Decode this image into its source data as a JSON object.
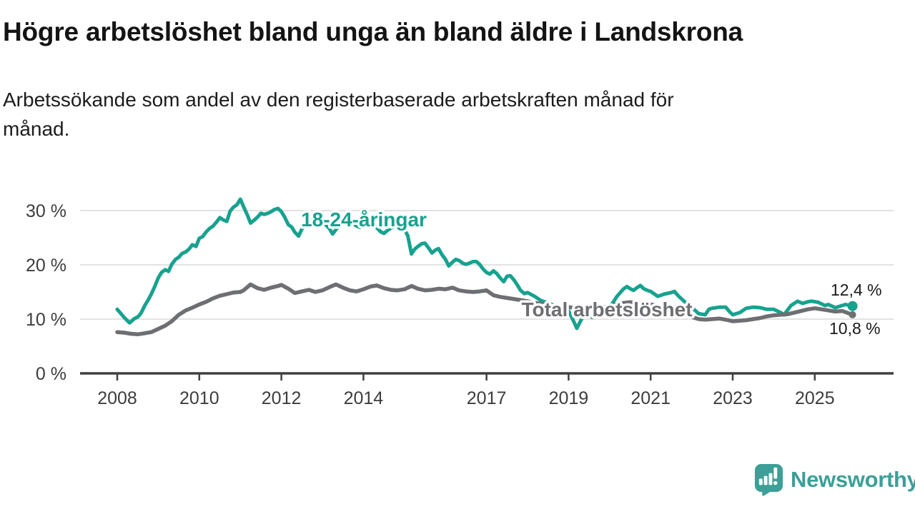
{
  "header": {
    "title": "Högre arbetslöshet bland unga än bland äldre i Landskrona",
    "subtitle": "Arbetssökande som andel av den registerbaserade arbetskraften månad för månad.",
    "subtitle_line1": "Arbetssökande som andel av den registerbaserade arbetskraften månad för",
    "subtitle_line2": "månad."
  },
  "footer": {
    "brand": "Newsworthy"
  },
  "colors": {
    "youth_line": "#17a28f",
    "total_line": "#6e6f72",
    "grid": "#d9d9d9",
    "axis": "#3f4040",
    "tick_text": "#3d3d3d",
    "end_label_text": "#1a1a1a",
    "brand_teal": "#3d9f97"
  },
  "chart_data": {
    "type": "line",
    "title": "Högre arbetslöshet bland unga än bland äldre i Landskrona",
    "subtitle": "Arbetssökande som andel av den registerbaserade arbetskraften månad för månad.",
    "unit": "%",
    "xlim": [
      2007.1,
      2026.9
    ],
    "ylim": [
      0,
      33
    ],
    "grid": "horizontal",
    "legend": "inline-labels",
    "x_ticks": [
      {
        "value": 2008,
        "label": "2008"
      },
      {
        "value": 2010,
        "label": "2010"
      },
      {
        "value": 2012,
        "label": "2012"
      },
      {
        "value": 2014,
        "label": "2014"
      },
      {
        "value": 2017,
        "label": "2017"
      },
      {
        "value": 2019,
        "label": "2019"
      },
      {
        "value": 2021,
        "label": "2021"
      },
      {
        "value": 2023,
        "label": "2023"
      },
      {
        "value": 2025,
        "label": "2025"
      }
    ],
    "y_ticks": [
      {
        "value": 0,
        "label": "0 %"
      },
      {
        "value": 10,
        "label": "10 %"
      },
      {
        "value": 20,
        "label": "20 %"
      },
      {
        "value": 30,
        "label": "30 %"
      }
    ],
    "series": [
      {
        "key": "youth",
        "name": "18-24-åringar",
        "label_text": "18-24-åringar",
        "color": "#17a28f",
        "end_value": 12.4,
        "end_label": "12,4 %",
        "points": [
          [
            2008,
            11.8
          ],
          [
            2008.08,
            11.1
          ],
          [
            2008.17,
            10.3
          ],
          [
            2008.3,
            9.3
          ],
          [
            2008.42,
            10.1
          ],
          [
            2008.5,
            10.4
          ],
          [
            2008.58,
            11.1
          ],
          [
            2008.67,
            12.5
          ],
          [
            2008.75,
            13.5
          ],
          [
            2008.83,
            14.6
          ],
          [
            2008.92,
            16.1
          ],
          [
            2009,
            17.6
          ],
          [
            2009.08,
            18.6
          ],
          [
            2009.17,
            19.1
          ],
          [
            2009.25,
            18.8
          ],
          [
            2009.33,
            20.1
          ],
          [
            2009.42,
            21
          ],
          [
            2009.5,
            21.4
          ],
          [
            2009.58,
            22.1
          ],
          [
            2009.67,
            22.4
          ],
          [
            2009.75,
            22.9
          ],
          [
            2009.83,
            23.7
          ],
          [
            2009.92,
            23.4
          ],
          [
            2010,
            24.9
          ],
          [
            2010.08,
            25.2
          ],
          [
            2010.17,
            26.1
          ],
          [
            2010.25,
            26.7
          ],
          [
            2010.33,
            27.1
          ],
          [
            2010.42,
            27.9
          ],
          [
            2010.5,
            28.7
          ],
          [
            2010.58,
            28.3
          ],
          [
            2010.67,
            28
          ],
          [
            2010.75,
            29.9
          ],
          [
            2010.83,
            30.6
          ],
          [
            2010.92,
            31.1
          ],
          [
            2011,
            32.1
          ],
          [
            2011.08,
            30.7
          ],
          [
            2011.17,
            29.2
          ],
          [
            2011.25,
            27.7
          ],
          [
            2011.33,
            28.2
          ],
          [
            2011.42,
            28.8
          ],
          [
            2011.5,
            29.5
          ],
          [
            2011.58,
            29.3
          ],
          [
            2011.67,
            29.5
          ],
          [
            2011.75,
            29.8
          ],
          [
            2011.83,
            30.2
          ],
          [
            2011.92,
            30.4
          ],
          [
            2012,
            29.8
          ],
          [
            2012.08,
            28.8
          ],
          [
            2012.17,
            27.4
          ],
          [
            2012.25,
            27
          ],
          [
            2012.33,
            26
          ],
          [
            2012.42,
            25.3
          ],
          [
            2012.5,
            26.6
          ],
          [
            2012.58,
            27.4
          ],
          [
            2012.67,
            27.9
          ],
          [
            2012.75,
            28.3
          ],
          [
            2012.83,
            28.6
          ],
          [
            2012.92,
            28.3
          ],
          [
            2013,
            27.9
          ],
          [
            2013.08,
            27.4
          ],
          [
            2013.17,
            26.7
          ],
          [
            2013.25,
            25.7
          ],
          [
            2013.33,
            26.5
          ],
          [
            2013.42,
            27.3
          ],
          [
            2013.5,
            27.9
          ],
          [
            2013.58,
            28.4
          ],
          [
            2013.67,
            28
          ],
          [
            2013.75,
            27.6
          ],
          [
            2013.83,
            27.2
          ],
          [
            2013.92,
            26.9
          ],
          [
            2014,
            27.3
          ],
          [
            2014.08,
            27.7
          ],
          [
            2014.17,
            28
          ],
          [
            2014.25,
            27.4
          ],
          [
            2014.33,
            26.8
          ],
          [
            2014.42,
            26.1
          ],
          [
            2014.5,
            25.8
          ],
          [
            2014.58,
            26.3
          ],
          [
            2014.67,
            26.8
          ],
          [
            2014.75,
            27
          ],
          [
            2014.83,
            26.6
          ],
          [
            2014.92,
            26.2
          ],
          [
            2015,
            26.5
          ],
          [
            2015.08,
            25.4
          ],
          [
            2015.17,
            22
          ],
          [
            2015.25,
            22.9
          ],
          [
            2015.33,
            23.4
          ],
          [
            2015.42,
            23.9
          ],
          [
            2015.5,
            24
          ],
          [
            2015.58,
            23.2
          ],
          [
            2015.67,
            22.2
          ],
          [
            2015.75,
            22.7
          ],
          [
            2015.83,
            23
          ],
          [
            2015.92,
            21.8
          ],
          [
            2016,
            21
          ],
          [
            2016.08,
            19.8
          ],
          [
            2016.17,
            20.5
          ],
          [
            2016.25,
            21
          ],
          [
            2016.33,
            20.8
          ],
          [
            2016.42,
            20.3
          ],
          [
            2016.5,
            20.1
          ],
          [
            2016.58,
            20.3
          ],
          [
            2016.67,
            20.6
          ],
          [
            2016.75,
            20.6
          ],
          [
            2016.83,
            20.1
          ],
          [
            2016.92,
            19.2
          ],
          [
            2017,
            18.6
          ],
          [
            2017.08,
            18.3
          ],
          [
            2017.17,
            18.9
          ],
          [
            2017.25,
            18.4
          ],
          [
            2017.33,
            17.6
          ],
          [
            2017.42,
            16.9
          ],
          [
            2017.5,
            17.9
          ],
          [
            2017.58,
            18
          ],
          [
            2017.67,
            17.2
          ],
          [
            2017.75,
            16.3
          ],
          [
            2017.83,
            15.3
          ],
          [
            2017.92,
            14.7
          ],
          [
            2018,
            14.9
          ],
          [
            2018.17,
            14.2
          ],
          [
            2018.33,
            13.4
          ],
          [
            2018.5,
            13
          ],
          [
            2018.67,
            12.4
          ],
          [
            2018.83,
            12
          ],
          [
            2019,
            11.5
          ],
          [
            2019.08,
            10.3
          ],
          [
            2019.2,
            8.3
          ],
          [
            2019.33,
            10.2
          ],
          [
            2019.42,
            10.9
          ],
          [
            2019.5,
            10.6
          ],
          [
            2019.58,
            10.3
          ],
          [
            2019.67,
            10.6
          ],
          [
            2019.83,
            11.2
          ],
          [
            2020,
            12.1
          ],
          [
            2020.17,
            14.1
          ],
          [
            2020.33,
            15.5
          ],
          [
            2020.42,
            16
          ],
          [
            2020.5,
            15.6
          ],
          [
            2020.58,
            15.3
          ],
          [
            2020.67,
            15.8
          ],
          [
            2020.75,
            16.2
          ],
          [
            2020.83,
            15.6
          ],
          [
            2020.92,
            15.3
          ],
          [
            2021,
            15.1
          ],
          [
            2021.17,
            14.2
          ],
          [
            2021.33,
            14.6
          ],
          [
            2021.5,
            14.9
          ],
          [
            2021.58,
            15.1
          ],
          [
            2021.67,
            14.3
          ],
          [
            2021.83,
            13.2
          ],
          [
            2022,
            12.2
          ],
          [
            2022.17,
            11
          ],
          [
            2022.33,
            10.8
          ],
          [
            2022.42,
            11.8
          ],
          [
            2022.5,
            12
          ],
          [
            2022.67,
            12.2
          ],
          [
            2022.83,
            12.2
          ],
          [
            2022.92,
            11.4
          ],
          [
            2023,
            10.8
          ],
          [
            2023.17,
            11.2
          ],
          [
            2023.33,
            12
          ],
          [
            2023.5,
            12.2
          ],
          [
            2023.67,
            12.1
          ],
          [
            2023.83,
            11.8
          ],
          [
            2024,
            11.8
          ],
          [
            2024.17,
            11.2
          ],
          [
            2024.25,
            10.8
          ],
          [
            2024.42,
            12.5
          ],
          [
            2024.58,
            13.3
          ],
          [
            2024.7,
            12.9
          ],
          [
            2024.83,
            13.2
          ],
          [
            2024.92,
            13.3
          ],
          [
            2025.08,
            13.1
          ],
          [
            2025.25,
            12.5
          ],
          [
            2025.33,
            12.7
          ],
          [
            2025.5,
            12.1
          ],
          [
            2025.58,
            12.3
          ],
          [
            2025.75,
            12.7
          ],
          [
            2025.92,
            12.4
          ]
        ]
      },
      {
        "key": "total",
        "name": "Total arbetslöshet",
        "label_text": "Total arbetslöshet",
        "color": "#6e6f72",
        "end_value": 10.8,
        "end_label": "10,8 %",
        "points": [
          [
            2008,
            7.6
          ],
          [
            2008.17,
            7.5
          ],
          [
            2008.33,
            7.3
          ],
          [
            2008.5,
            7.2
          ],
          [
            2008.67,
            7.4
          ],
          [
            2008.83,
            7.6
          ],
          [
            2009,
            8.2
          ],
          [
            2009.17,
            8.8
          ],
          [
            2009.33,
            9.6
          ],
          [
            2009.5,
            10.8
          ],
          [
            2009.67,
            11.6
          ],
          [
            2009.83,
            12.1
          ],
          [
            2010,
            12.7
          ],
          [
            2010.17,
            13.2
          ],
          [
            2010.33,
            13.8
          ],
          [
            2010.5,
            14.3
          ],
          [
            2010.67,
            14.6
          ],
          [
            2010.83,
            14.9
          ],
          [
            2011,
            15
          ],
          [
            2011.08,
            15.3
          ],
          [
            2011.25,
            16.4
          ],
          [
            2011.42,
            15.7
          ],
          [
            2011.58,
            15.4
          ],
          [
            2011.75,
            15.8
          ],
          [
            2011.92,
            16.1
          ],
          [
            2012,
            16.3
          ],
          [
            2012.17,
            15.6
          ],
          [
            2012.33,
            14.8
          ],
          [
            2012.5,
            15.1
          ],
          [
            2012.67,
            15.4
          ],
          [
            2012.83,
            15
          ],
          [
            2013,
            15.3
          ],
          [
            2013.17,
            15.9
          ],
          [
            2013.33,
            16.4
          ],
          [
            2013.5,
            15.8
          ],
          [
            2013.67,
            15.3
          ],
          [
            2013.83,
            15.1
          ],
          [
            2014,
            15.5
          ],
          [
            2014.17,
            16
          ],
          [
            2014.33,
            16.2
          ],
          [
            2014.5,
            15.7
          ],
          [
            2014.67,
            15.4
          ],
          [
            2014.83,
            15.3
          ],
          [
            2015,
            15.5
          ],
          [
            2015.17,
            16.1
          ],
          [
            2015.33,
            15.6
          ],
          [
            2015.5,
            15.3
          ],
          [
            2015.67,
            15.4
          ],
          [
            2015.83,
            15.6
          ],
          [
            2016,
            15.5
          ],
          [
            2016.17,
            15.8
          ],
          [
            2016.33,
            15.3
          ],
          [
            2016.5,
            15.1
          ],
          [
            2016.67,
            15
          ],
          [
            2016.83,
            15.1
          ],
          [
            2017,
            15.3
          ],
          [
            2017.17,
            14.4
          ],
          [
            2017.33,
            14.1
          ],
          [
            2017.5,
            13.9
          ],
          [
            2017.75,
            13.6
          ],
          [
            2018,
            13.3
          ],
          [
            2018.25,
            12.9
          ],
          [
            2018.5,
            12.6
          ],
          [
            2018.75,
            12.4
          ],
          [
            2019,
            12.2
          ],
          [
            2019.25,
            12
          ],
          [
            2019.5,
            11.9
          ],
          [
            2019.75,
            12.1
          ],
          [
            2020,
            12.4
          ],
          [
            2020.25,
            12.9
          ],
          [
            2020.5,
            13.1
          ],
          [
            2020.75,
            13
          ],
          [
            2021,
            12.7
          ],
          [
            2021.25,
            12.3
          ],
          [
            2021.5,
            11.8
          ],
          [
            2021.75,
            11.2
          ],
          [
            2022,
            10.4
          ],
          [
            2022.17,
            10
          ],
          [
            2022.33,
            9.9
          ],
          [
            2022.5,
            10
          ],
          [
            2022.67,
            10.1
          ],
          [
            2022.83,
            9.9
          ],
          [
            2023,
            9.6
          ],
          [
            2023.17,
            9.7
          ],
          [
            2023.33,
            9.8
          ],
          [
            2023.5,
            10
          ],
          [
            2023.67,
            10.2
          ],
          [
            2023.83,
            10.5
          ],
          [
            2024,
            10.7
          ],
          [
            2024.17,
            10.8
          ],
          [
            2024.33,
            10.9
          ],
          [
            2024.5,
            11.2
          ],
          [
            2024.67,
            11.5
          ],
          [
            2024.83,
            11.8
          ],
          [
            2025,
            12
          ],
          [
            2025.17,
            11.8
          ],
          [
            2025.33,
            11.6
          ],
          [
            2025.5,
            11.4
          ],
          [
            2025.67,
            11.5
          ],
          [
            2025.92,
            10.8
          ]
        ]
      }
    ]
  }
}
